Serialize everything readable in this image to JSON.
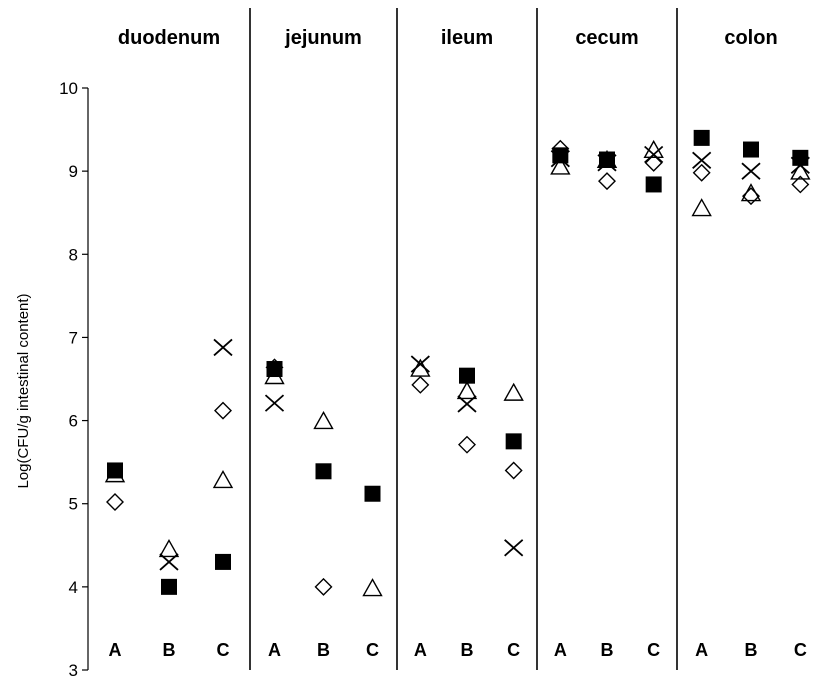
{
  "chart_data": {
    "type": "scatter",
    "ylabel": "Log(CFU/g intestinal content)",
    "ylim": [
      3,
      10
    ],
    "yticks": [
      3,
      4,
      5,
      6,
      7,
      8,
      9,
      10
    ],
    "grid": false,
    "categories": [
      "A",
      "B",
      "C"
    ],
    "panels": [
      {
        "title": "duodenum",
        "points": {
          "square": [
            5.4,
            4.0,
            4.3
          ],
          "diamond": [
            5.02,
            null,
            6.12
          ],
          "triangle": [
            5.35,
            4.45,
            5.28
          ],
          "cross": [
            null,
            4.3,
            6.88
          ]
        }
      },
      {
        "title": "jejunum",
        "points": {
          "square": [
            6.62,
            5.39,
            5.12
          ],
          "diamond": [
            6.64,
            4.0,
            null
          ],
          "triangle": [
            6.53,
            5.99,
            3.98
          ],
          "cross": [
            6.21,
            null,
            null
          ]
        }
      },
      {
        "title": "ileum",
        "points": {
          "square": [
            null,
            6.54,
            5.75
          ],
          "diamond": [
            6.43,
            5.71,
            5.4
          ],
          "triangle": [
            6.62,
            6.35,
            6.33
          ],
          "cross": [
            6.68,
            6.2,
            4.47
          ]
        }
      },
      {
        "title": "cecum",
        "points": {
          "square": [
            9.19,
            9.14,
            8.84
          ],
          "diamond": [
            9.27,
            8.88,
            9.1
          ],
          "triangle": [
            9.05,
            9.13,
            9.25
          ],
          "cross": [
            9.15,
            9.1,
            9.2
          ]
        }
      },
      {
        "title": "colon",
        "points": {
          "square": [
            9.4,
            9.26,
            9.16
          ],
          "diamond": [
            8.98,
            8.7,
            8.84
          ],
          "triangle": [
            8.55,
            8.73,
            8.99
          ],
          "cross": [
            9.13,
            9.0,
            9.07
          ]
        }
      }
    ]
  }
}
